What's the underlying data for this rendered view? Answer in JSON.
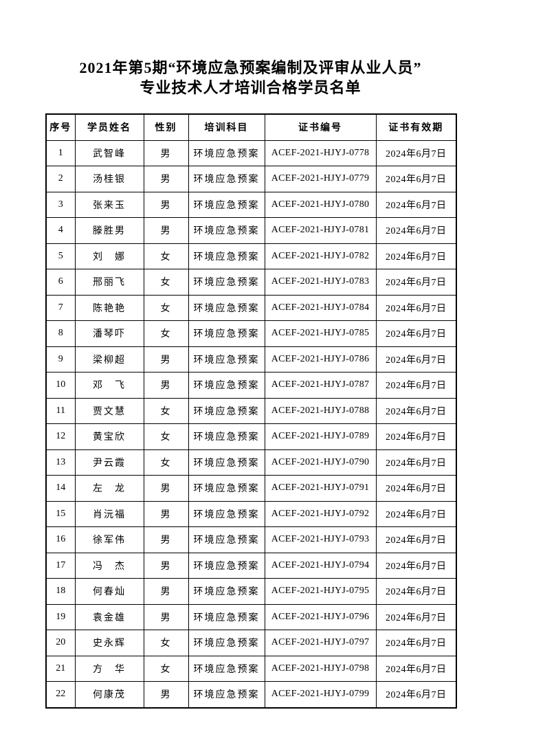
{
  "page": {
    "title_line1": "2021年第5期“环境应急预案编制及评审从业人员”",
    "title_line2": "专业技术人才培训合格学员名单"
  },
  "table": {
    "headers": [
      "序号",
      "学员姓名",
      "性别",
      "培训科目",
      "证书编号",
      "证书有效期"
    ],
    "column_keys": [
      "no",
      "name",
      "gender",
      "subject",
      "cert",
      "validity"
    ],
    "rows": [
      [
        "1",
        "武智峰",
        "男",
        "环境应急预案",
        "ACEF-2021-HJYJ-0778",
        "2024年6月7日"
      ],
      [
        "2",
        "汤桂银",
        "男",
        "环境应急预案",
        "ACEF-2021-HJYJ-0779",
        "2024年6月7日"
      ],
      [
        "3",
        "张来玉",
        "男",
        "环境应急预案",
        "ACEF-2021-HJYJ-0780",
        "2024年6月7日"
      ],
      [
        "4",
        "滕胜男",
        "男",
        "环境应急预案",
        "ACEF-2021-HJYJ-0781",
        "2024年6月7日"
      ],
      [
        "5",
        "刘　娜",
        "女",
        "环境应急预案",
        "ACEF-2021-HJYJ-0782",
        "2024年6月7日"
      ],
      [
        "6",
        "邢丽飞",
        "女",
        "环境应急预案",
        "ACEF-2021-HJYJ-0783",
        "2024年6月7日"
      ],
      [
        "7",
        "陈艳艳",
        "女",
        "环境应急预案",
        "ACEF-2021-HJYJ-0784",
        "2024年6月7日"
      ],
      [
        "8",
        "潘琴吓",
        "女",
        "环境应急预案",
        "ACEF-2021-HJYJ-0785",
        "2024年6月7日"
      ],
      [
        "9",
        "梁柳超",
        "男",
        "环境应急预案",
        "ACEF-2021-HJYJ-0786",
        "2024年6月7日"
      ],
      [
        "10",
        "邓　飞",
        "男",
        "环境应急预案",
        "ACEF-2021-HJYJ-0787",
        "2024年6月7日"
      ],
      [
        "11",
        "贾文慧",
        "女",
        "环境应急预案",
        "ACEF-2021-HJYJ-0788",
        "2024年6月7日"
      ],
      [
        "12",
        "黄宝欣",
        "女",
        "环境应急预案",
        "ACEF-2021-HJYJ-0789",
        "2024年6月7日"
      ],
      [
        "13",
        "尹云霞",
        "女",
        "环境应急预案",
        "ACEF-2021-HJYJ-0790",
        "2024年6月7日"
      ],
      [
        "14",
        "左　龙",
        "男",
        "环境应急预案",
        "ACEF-2021-HJYJ-0791",
        "2024年6月7日"
      ],
      [
        "15",
        "肖沅福",
        "男",
        "环境应急预案",
        "ACEF-2021-HJYJ-0792",
        "2024年6月7日"
      ],
      [
        "16",
        "徐军伟",
        "男",
        "环境应急预案",
        "ACEF-2021-HJYJ-0793",
        "2024年6月7日"
      ],
      [
        "17",
        "冯　杰",
        "男",
        "环境应急预案",
        "ACEF-2021-HJYJ-0794",
        "2024年6月7日"
      ],
      [
        "18",
        "何春灿",
        "男",
        "环境应急预案",
        "ACEF-2021-HJYJ-0795",
        "2024年6月7日"
      ],
      [
        "19",
        "袁金雄",
        "男",
        "环境应急预案",
        "ACEF-2021-HJYJ-0796",
        "2024年6月7日"
      ],
      [
        "20",
        "史永辉",
        "女",
        "环境应急预案",
        "ACEF-2021-HJYJ-0797",
        "2024年6月7日"
      ],
      [
        "21",
        "方　华",
        "女",
        "环境应急预案",
        "ACEF-2021-HJYJ-0798",
        "2024年6月7日"
      ],
      [
        "22",
        "何康茂",
        "男",
        "环境应急预案",
        "ACEF-2021-HJYJ-0799",
        "2024年6月7日"
      ]
    ]
  }
}
